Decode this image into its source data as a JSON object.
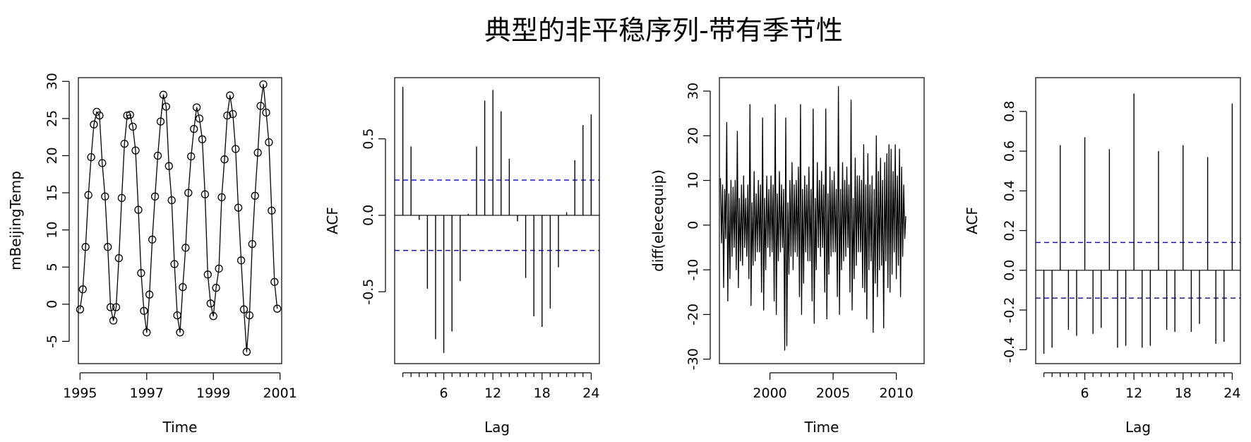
{
  "title": "典型的非平稳序列-带有季节性",
  "colors": {
    "line": "#000000",
    "ci": "#0000ff",
    "background": "#ffffff"
  },
  "chart_data": [
    {
      "type": "line",
      "markers": "open-circle",
      "xlabel": "Time",
      "ylabel": "mBeijingTemp",
      "xlim": [
        1994.95,
        2001.05
      ],
      "ylim": [
        -8,
        30.5
      ],
      "xticks": [
        1995,
        1997,
        1999,
        2001
      ],
      "yticks": [
        -5,
        0,
        5,
        10,
        15,
        20,
        25,
        30
      ],
      "x_start": 1995.0,
      "x_step": 0.0833333,
      "values": [
        -0.7,
        2.0,
        7.7,
        14.7,
        19.8,
        24.2,
        25.9,
        25.4,
        19.0,
        14.5,
        7.7,
        -0.4,
        -2.2,
        -0.4,
        6.2,
        14.3,
        21.6,
        25.4,
        25.5,
        23.9,
        20.7,
        12.7,
        4.2,
        -0.9,
        -3.8,
        1.3,
        8.7,
        14.5,
        20.0,
        24.6,
        28.2,
        26.6,
        18.6,
        14.0,
        5.4,
        -1.5,
        -3.8,
        2.3,
        7.6,
        15.0,
        19.9,
        23.6,
        26.5,
        25.0,
        22.2,
        14.8,
        4.0,
        0.1,
        -1.6,
        2.2,
        4.8,
        14.4,
        19.5,
        25.4,
        28.1,
        25.6,
        20.9,
        13.0,
        5.9,
        -0.7,
        -6.4,
        -1.5,
        8.1,
        14.6,
        20.4,
        26.7,
        29.6,
        25.8,
        21.8,
        12.6,
        3.0,
        -0.6
      ]
    },
    {
      "type": "bar",
      "style": "acf",
      "xlabel": "Lag",
      "ylabel": "ACF",
      "xlim": [
        0,
        25
      ],
      "ylim": [
        -0.97,
        0.9
      ],
      "xticks": [
        6,
        12,
        18,
        24
      ],
      "yticks": [
        -0.5,
        0.0,
        0.5
      ],
      "ci": 0.23,
      "lags": [
        1,
        2,
        3,
        4,
        5,
        6,
        7,
        8,
        9,
        10,
        11,
        12,
        13,
        14,
        15,
        16,
        17,
        18,
        19,
        20,
        21,
        22,
        23,
        24
      ],
      "values": [
        0.84,
        0.45,
        -0.03,
        -0.48,
        -0.81,
        -0.9,
        -0.76,
        -0.43,
        0.01,
        0.45,
        0.75,
        0.82,
        0.68,
        0.37,
        -0.04,
        -0.41,
        -0.66,
        -0.73,
        -0.61,
        -0.34,
        0.02,
        0.36,
        0.59,
        0.66
      ]
    },
    {
      "type": "line",
      "xlabel": "Time",
      "ylabel": "diff(elecequip)",
      "xlim": [
        1996.0,
        2012.2
      ],
      "ylim": [
        -31,
        33
      ],
      "xticks": [
        2000,
        2005,
        2010
      ],
      "yticks": [
        -30,
        -20,
        -10,
        0,
        10,
        20,
        30
      ],
      "x_start": 1996.0833,
      "x_step": 0.0833333,
      "values": [
        10.5,
        -4.0,
        9.0,
        -14.0,
        8.0,
        -3.0,
        23.0,
        -17.0,
        7.0,
        -12.0,
        10.0,
        -7.0,
        8.5,
        -5.0,
        10.0,
        -10.0,
        21.0,
        -14.0,
        6.0,
        -8.0,
        9.0,
        -9.0,
        11.0,
        -5.0,
        6.0,
        -7.0,
        9.0,
        -12.0,
        27.0,
        -18.0,
        5.0,
        -9.0,
        12.0,
        -8.0,
        7.0,
        -6.0,
        10.0,
        -6.0,
        9.0,
        -15.0,
        24.0,
        -19.0,
        6.0,
        -10.0,
        11.0,
        -5.0,
        8.0,
        -7.0,
        11.0,
        -6.0,
        9.0,
        -17.0,
        27.0,
        -20.0,
        7.0,
        -8.0,
        12.0,
        -6.0,
        9.0,
        -5.0,
        8.0,
        -28.0,
        24.0,
        -27.0,
        5.0,
        -11.0,
        10.0,
        -7.0,
        14.0,
        -10.0,
        9.0,
        -6.0,
        10.0,
        -7.0,
        13.0,
        -16.0,
        27.0,
        -20.0,
        8.0,
        -13.0,
        11.0,
        -6.0,
        9.0,
        -8.0,
        13.0,
        -8.0,
        8.0,
        -17.0,
        26.0,
        -22.0,
        6.0,
        -10.0,
        14.0,
        -5.0,
        10.0,
        -7.0,
        12.0,
        -5.0,
        9.0,
        -15.0,
        26.0,
        -21.0,
        7.0,
        -11.0,
        13.0,
        -7.0,
        10.0,
        -6.0,
        12.0,
        -6.0,
        8.0,
        -16.0,
        31.0,
        -20.0,
        8.0,
        -10.0,
        14.0,
        -8.0,
        10.0,
        -7.0,
        13.0,
        -5.0,
        9.0,
        -15.0,
        28.0,
        -19.0,
        6.0,
        -12.0,
        15.0,
        -9.0,
        11.0,
        -6.0,
        11.0,
        -6.0,
        10.0,
        -14.0,
        18.0,
        -15.0,
        9.0,
        -21.0,
        16.0,
        -10.0,
        9.0,
        -8.0,
        11.0,
        -24.0,
        8.0,
        -13.0,
        20.0,
        -16.0,
        12.0,
        -10.0,
        15.0,
        -9.0,
        10.0,
        -23.0,
        14.0,
        -8.0,
        16.0,
        -14.0,
        18.0,
        -15.0,
        17.0,
        -11.0,
        12.0,
        -6.0,
        18.0,
        -12.0,
        11.0,
        -9.0,
        17.0,
        -16.0,
        13.0,
        -7.0,
        9.0,
        -3.0,
        2.0
      ]
    },
    {
      "type": "bar",
      "style": "acf",
      "xlabel": "Lag",
      "ylabel": "ACF",
      "xlim": [
        0,
        25
      ],
      "ylim": [
        -0.47,
        0.97
      ],
      "xticks": [
        6,
        12,
        18,
        24
      ],
      "yticks": [
        -0.4,
        -0.2,
        0.0,
        0.2,
        0.4,
        0.6,
        0.8
      ],
      "ci": 0.14,
      "lags": [
        1,
        2,
        3,
        4,
        5,
        6,
        7,
        8,
        9,
        10,
        11,
        12,
        13,
        14,
        15,
        16,
        17,
        18,
        19,
        20,
        21,
        22,
        23,
        24
      ],
      "values": [
        -0.42,
        -0.39,
        0.63,
        -0.3,
        -0.33,
        0.67,
        -0.32,
        -0.29,
        0.61,
        -0.39,
        -0.38,
        0.89,
        -0.39,
        -0.38,
        0.6,
        -0.3,
        -0.31,
        0.63,
        -0.31,
        -0.27,
        0.57,
        -0.37,
        -0.36,
        0.84
      ]
    }
  ]
}
